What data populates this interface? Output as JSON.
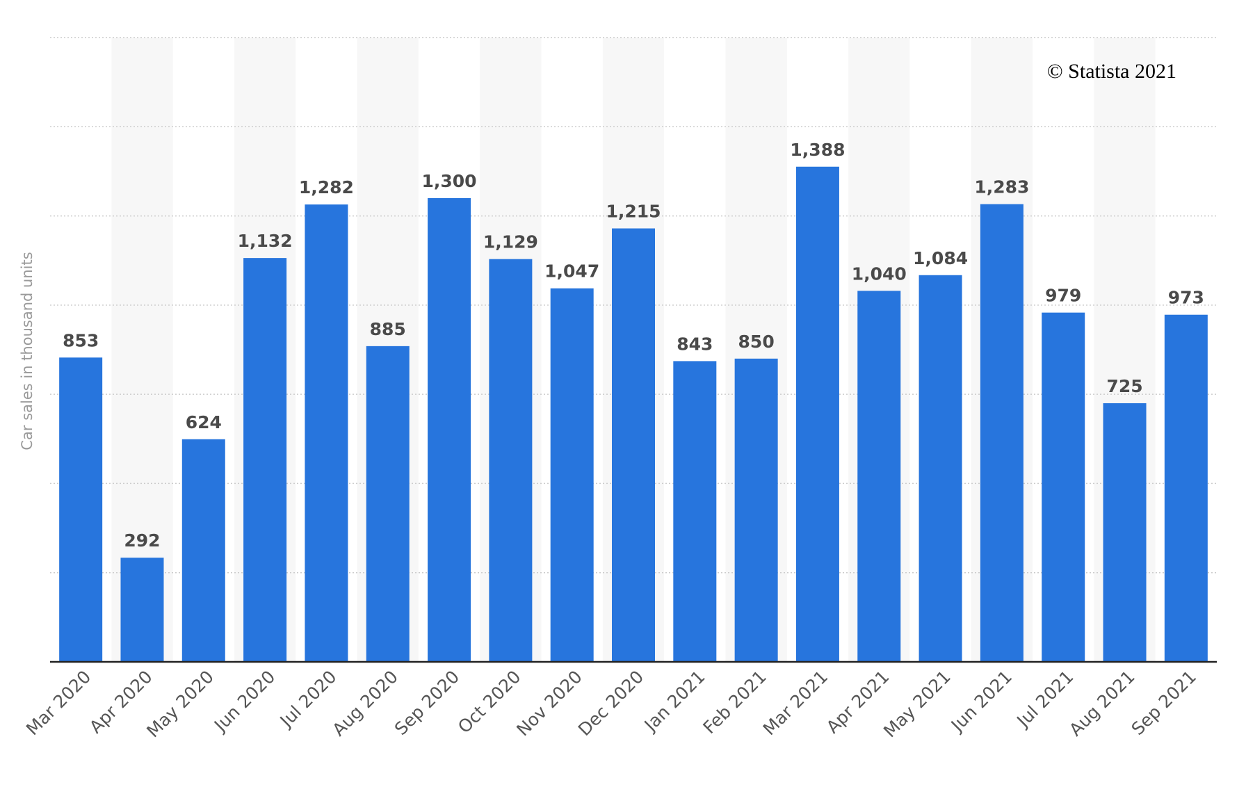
{
  "credit": "© Statista 2021",
  "colors": {
    "bar": "#2775dd",
    "band": "#f7f7f7",
    "grid": "#cccccc",
    "axis": "#222222"
  },
  "chart_data": {
    "type": "bar",
    "title": "",
    "xlabel": "",
    "ylabel": "Car sales in thousand units",
    "categories": [
      "Mar 2020",
      "Apr 2020",
      "May 2020",
      "Jun 2020",
      "Jul 2020",
      "Aug 2020",
      "Sep 2020",
      "Oct 2020",
      "Nov 2020",
      "Dec 2020",
      "Jan 2021",
      "Feb 2021",
      "Mar 2021",
      "Apr 2021",
      "May 2021",
      "Jun 2021",
      "Jul 2021",
      "Aug 2021",
      "Sep 2021"
    ],
    "values": [
      853,
      292,
      624,
      1132,
      1282,
      885,
      1300,
      1129,
      1047,
      1215,
      843,
      850,
      1388,
      1040,
      1084,
      1283,
      979,
      725,
      973
    ],
    "value_labels": [
      "853",
      "292",
      "624",
      "1,132",
      "1,282",
      "885",
      "1,300",
      "1,129",
      "1,047",
      "1,215",
      "843",
      "850",
      "1,388",
      "1,040",
      "1,084",
      "1,283",
      "979",
      "725",
      "973"
    ],
    "ylim": [
      0,
      1750
    ],
    "grid": true,
    "legend": false
  }
}
